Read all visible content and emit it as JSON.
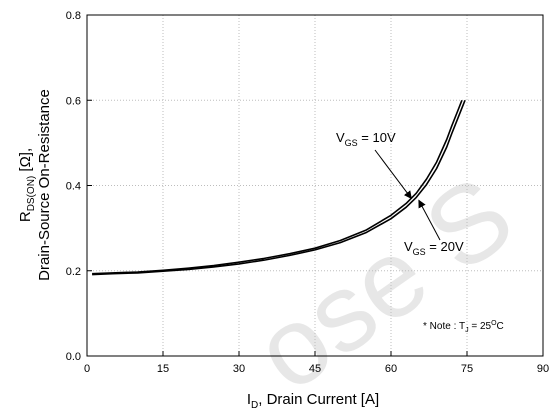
{
  "chart_data": {
    "type": "line",
    "title": "",
    "xlabel": {
      "main": "I",
      "sub": "D",
      "rest": ", Drain Current [A]"
    },
    "ylabel": {
      "line1": {
        "main": "R",
        "sub": "DS(ON)",
        "rest": " [Ω],"
      },
      "line2": "Drain-Source On-Resistance"
    },
    "xlim": [
      0,
      90
    ],
    "ylim": [
      0.0,
      0.8
    ],
    "xticks": [
      0,
      15,
      30,
      45,
      60,
      75,
      90
    ],
    "xtick_labels": [
      "0",
      "15",
      "30",
      "45",
      "60",
      "75",
      "90"
    ],
    "yticks": [
      0.0,
      0.2,
      0.4,
      0.6,
      0.8
    ],
    "ytick_labels": [
      "0.0",
      "0.2",
      "0.4",
      "0.6",
      "0.8"
    ],
    "grid": true,
    "line_color": "#000000",
    "series": [
      {
        "name": "V_GS = 10V",
        "x": [
          1,
          5,
          10,
          15,
          20,
          25,
          30,
          35,
          40,
          45,
          50,
          55,
          60,
          63,
          65,
          67,
          69,
          71,
          72,
          73,
          74
        ],
        "y": [
          0.193,
          0.195,
          0.197,
          0.201,
          0.206,
          0.212,
          0.22,
          0.229,
          0.24,
          0.253,
          0.271,
          0.295,
          0.33,
          0.358,
          0.382,
          0.415,
          0.455,
          0.508,
          0.54,
          0.57,
          0.6
        ]
      },
      {
        "name": "V_GS = 20V",
        "x": [
          1,
          5,
          10,
          15,
          20,
          25,
          30,
          35,
          40,
          45,
          50,
          55,
          60,
          63,
          65,
          67,
          69,
          71,
          72,
          73,
          74.6
        ],
        "y": [
          0.191,
          0.193,
          0.195,
          0.199,
          0.203,
          0.209,
          0.216,
          0.225,
          0.236,
          0.249,
          0.266,
          0.289,
          0.322,
          0.349,
          0.372,
          0.402,
          0.44,
          0.49,
          0.522,
          0.552,
          0.6
        ]
      }
    ],
    "annotations": [
      {
        "main": "V",
        "sub": "GS",
        "rest": " = 10V",
        "at": [
          64,
          0.37
        ]
      },
      {
        "main": "V",
        "sub": "GS",
        "rest": " = 20V",
        "at": [
          65.5,
          0.365
        ]
      }
    ],
    "note": {
      "prefix": "* Note : T",
      "sub": "J",
      "mid": " = 25",
      "sup": "O",
      "suffix": "C"
    }
  },
  "watermark": "ose S"
}
